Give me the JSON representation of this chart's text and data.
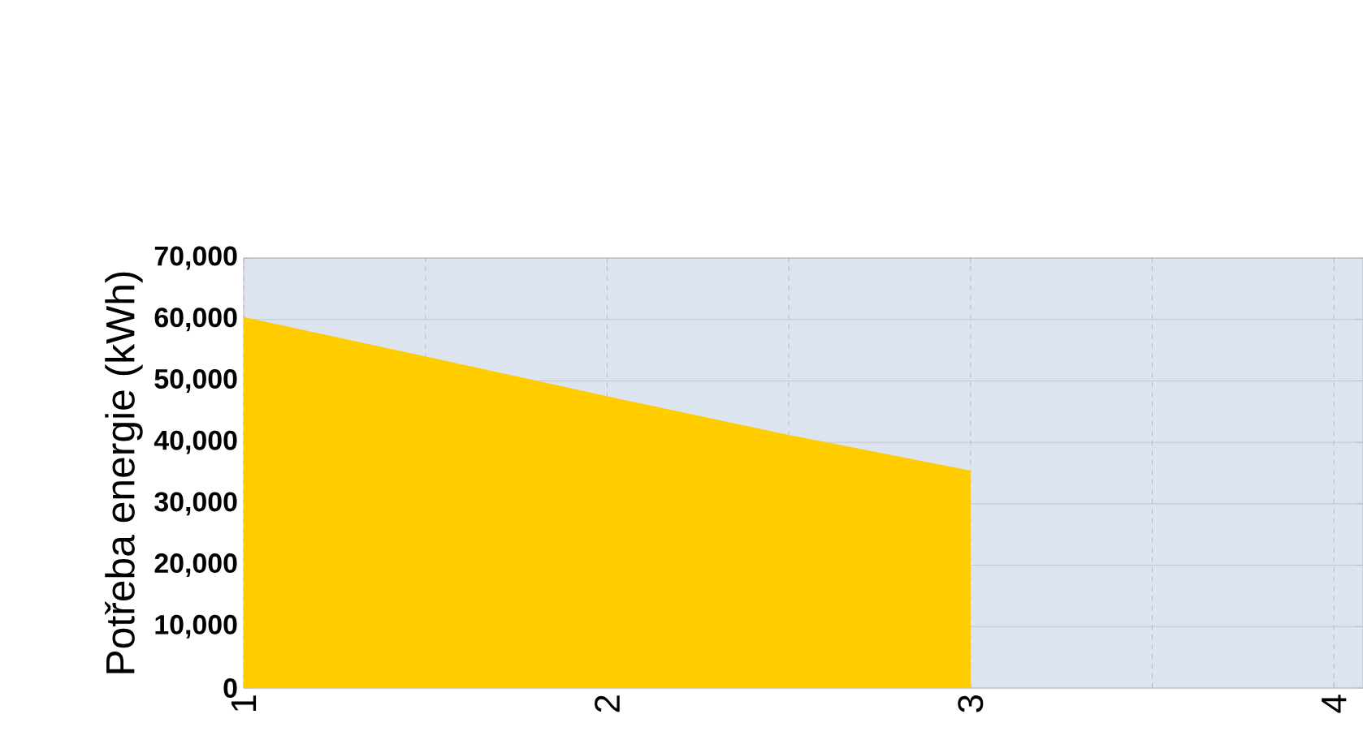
{
  "chart_data": {
    "type": "area",
    "ylabel": "Potřeba energie (kWh)",
    "x": [
      1,
      1.5,
      2,
      2.5,
      3
    ],
    "values": [
      60400,
      54000,
      47500,
      41200,
      35400
    ],
    "color": "#ffcc00",
    "xlim": [
      1,
      4.08
    ],
    "xticks": [
      1,
      2,
      3,
      4
    ],
    "ylim": [
      0,
      70000
    ],
    "yticks": [
      {
        "value": 0,
        "label": "0"
      },
      {
        "value": 10000,
        "label": "10,000"
      },
      {
        "value": 20000,
        "label": "20,000"
      },
      {
        "value": 30000,
        "label": "30,000"
      },
      {
        "value": 40000,
        "label": "40,000"
      },
      {
        "value": 50000,
        "label": "50,000"
      },
      {
        "value": 60000,
        "label": "60,000"
      },
      {
        "value": 70000,
        "label": "70,000"
      }
    ],
    "grid": true
  }
}
